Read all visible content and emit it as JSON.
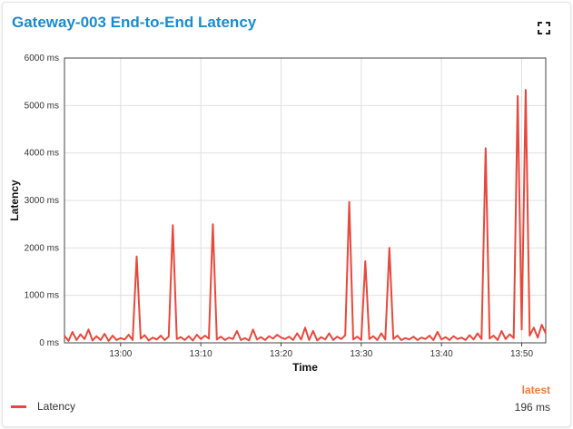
{
  "panel": {
    "title": "Gateway-003 End-to-End Latency",
    "expand_icon": "fullscreen-icon",
    "legend": {
      "label": "Latency",
      "latest_header": "latest",
      "latest_value": "196 ms",
      "color": "#e8483c"
    }
  },
  "chart_data": {
    "type": "line",
    "title": "",
    "xlabel": "Time",
    "ylabel": "Latency",
    "ylim": [
      0,
      6000
    ],
    "yticks": [
      0,
      1000,
      2000,
      3000,
      4000,
      5000,
      6000
    ],
    "ytick_labels": [
      "0 ms",
      "1000 ms",
      "2000 ms",
      "3000 ms",
      "4000 ms",
      "5000 ms",
      "6000 ms"
    ],
    "xlim": [
      "12:53",
      "13:53"
    ],
    "xticks": [
      "13:00",
      "13:10",
      "13:20",
      "13:30",
      "13:40",
      "13:50"
    ],
    "grid": true,
    "series": [
      {
        "name": "Latency",
        "color": "#e8483c",
        "points": [
          [
            "12:53",
            150
          ],
          [
            "12:53:30",
            40
          ],
          [
            "12:54",
            230
          ],
          [
            "12:54:30",
            60
          ],
          [
            "12:55",
            180
          ],
          [
            "12:55:30",
            80
          ],
          [
            "12:56",
            280
          ],
          [
            "12:56:30",
            50
          ],
          [
            "12:57",
            140
          ],
          [
            "12:57:30",
            60
          ],
          [
            "12:58",
            190
          ],
          [
            "12:58:30",
            40
          ],
          [
            "12:59",
            150
          ],
          [
            "12:59:30",
            60
          ],
          [
            "13:00",
            100
          ],
          [
            "13:00:30",
            70
          ],
          [
            "13:01",
            170
          ],
          [
            "13:01:30",
            60
          ],
          [
            "13:02",
            1820
          ],
          [
            "13:02:30",
            90
          ],
          [
            "13:03",
            160
          ],
          [
            "13:03:30",
            50
          ],
          [
            "13:04",
            110
          ],
          [
            "13:04:30",
            70
          ],
          [
            "13:05",
            150
          ],
          [
            "13:05:30",
            60
          ],
          [
            "13:06",
            130
          ],
          [
            "13:06:30",
            2480
          ],
          [
            "13:07",
            80
          ],
          [
            "13:07:30",
            120
          ],
          [
            "13:08",
            60
          ],
          [
            "13:08:30",
            140
          ],
          [
            "13:09",
            50
          ],
          [
            "13:09:30",
            170
          ],
          [
            "13:10",
            80
          ],
          [
            "13:10:30",
            150
          ],
          [
            "13:11",
            90
          ],
          [
            "13:11:30",
            2500
          ],
          [
            "13:12",
            70
          ],
          [
            "13:12:30",
            130
          ],
          [
            "13:13",
            60
          ],
          [
            "13:13:30",
            110
          ],
          [
            "13:14",
            80
          ],
          [
            "13:14:30",
            250
          ],
          [
            "13:15",
            60
          ],
          [
            "13:15:30",
            100
          ],
          [
            "13:16",
            50
          ],
          [
            "13:16:30",
            280
          ],
          [
            "13:17",
            70
          ],
          [
            "13:17:30",
            120
          ],
          [
            "13:18",
            60
          ],
          [
            "13:18:30",
            140
          ],
          [
            "13:19",
            90
          ],
          [
            "13:19:30",
            170
          ],
          [
            "13:20",
            110
          ],
          [
            "13:20:30",
            80
          ],
          [
            "13:21",
            130
          ],
          [
            "13:21:30",
            60
          ],
          [
            "13:22",
            200
          ],
          [
            "13:22:30",
            70
          ],
          [
            "13:23",
            320
          ],
          [
            "13:23:30",
            60
          ],
          [
            "13:24",
            250
          ],
          [
            "13:24:30",
            50
          ],
          [
            "13:25",
            120
          ],
          [
            "13:25:30",
            70
          ],
          [
            "13:26",
            200
          ],
          [
            "13:26:30",
            60
          ],
          [
            "13:27",
            130
          ],
          [
            "13:27:30",
            80
          ],
          [
            "13:28",
            160
          ],
          [
            "13:28:30",
            2970
          ],
          [
            "13:29",
            70
          ],
          [
            "13:29:30",
            130
          ],
          [
            "13:30",
            60
          ],
          [
            "13:30:30",
            1720
          ],
          [
            "13:31",
            80
          ],
          [
            "13:31:30",
            140
          ],
          [
            "13:32",
            60
          ],
          [
            "13:32:30",
            200
          ],
          [
            "13:33",
            70
          ],
          [
            "13:33:30",
            2000
          ],
          [
            "13:34",
            80
          ],
          [
            "13:34:30",
            150
          ],
          [
            "13:35",
            60
          ],
          [
            "13:35:30",
            100
          ],
          [
            "13:36",
            70
          ],
          [
            "13:36:30",
            130
          ],
          [
            "13:37",
            60
          ],
          [
            "13:37:30",
            110
          ],
          [
            "13:38",
            80
          ],
          [
            "13:38:30",
            150
          ],
          [
            "13:39",
            60
          ],
          [
            "13:39:30",
            230
          ],
          [
            "13:40",
            70
          ],
          [
            "13:40:30",
            120
          ],
          [
            "13:41",
            60
          ],
          [
            "13:41:30",
            140
          ],
          [
            "13:42",
            80
          ],
          [
            "13:42:30",
            110
          ],
          [
            "13:43",
            60
          ],
          [
            "13:43:30",
            160
          ],
          [
            "13:44",
            70
          ],
          [
            "13:44:30",
            200
          ],
          [
            "13:45",
            80
          ],
          [
            "13:45:30",
            4100
          ],
          [
            "13:46",
            90
          ],
          [
            "13:46:30",
            150
          ],
          [
            "13:47",
            60
          ],
          [
            "13:47:30",
            250
          ],
          [
            "13:48",
            80
          ],
          [
            "13:48:30",
            180
          ],
          [
            "13:49",
            100
          ],
          [
            "13:49:30",
            5200
          ],
          [
            "13:50",
            280
          ],
          [
            "13:50:30",
            5330
          ],
          [
            "13:51",
            150
          ],
          [
            "13:51:30",
            320
          ],
          [
            "13:52",
            110
          ],
          [
            "13:52:30",
            380
          ],
          [
            "13:53",
            196
          ]
        ]
      }
    ]
  }
}
